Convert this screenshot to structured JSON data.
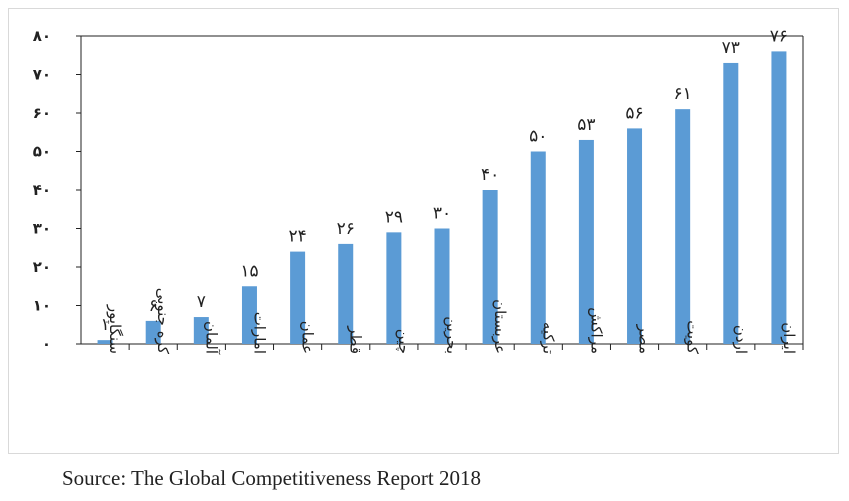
{
  "chart_data": {
    "type": "bar",
    "categories": [
      "سنگاپور",
      "کره جنوبی",
      "آلمان",
      "امارات",
      "عمان",
      "قطر",
      "چین",
      "بحرین",
      "عربستان",
      "ترکیه",
      "مراکش",
      "مصر",
      "کویت",
      "اردن",
      "ایران"
    ],
    "values": [
      1,
      6,
      7,
      15,
      24,
      26,
      29,
      30,
      40,
      50,
      53,
      56,
      61,
      73,
      76
    ],
    "value_labels": [
      "۱",
      "۶",
      "۷",
      "۱۵",
      "۲۴",
      "۲۶",
      "۲۹",
      "۳۰",
      "۴۰",
      "۵۰",
      "۵۳",
      "۵۶",
      "۶۱",
      "۷۳",
      "۷۶"
    ],
    "yticks": [
      0,
      10,
      20,
      30,
      40,
      50,
      60,
      70,
      80
    ],
    "ytick_labels": [
      "۰",
      "۱۰",
      "۲۰",
      "۳۰",
      "۴۰",
      "۵۰",
      "۶۰",
      "۷۰",
      "۸۰"
    ],
    "ylim": [
      0,
      80
    ],
    "title": "",
    "xlabel": "",
    "ylabel": "",
    "grid": false,
    "bar_color": "#5b9bd5"
  },
  "source": "Source: The Global Competitiveness Report 2018"
}
